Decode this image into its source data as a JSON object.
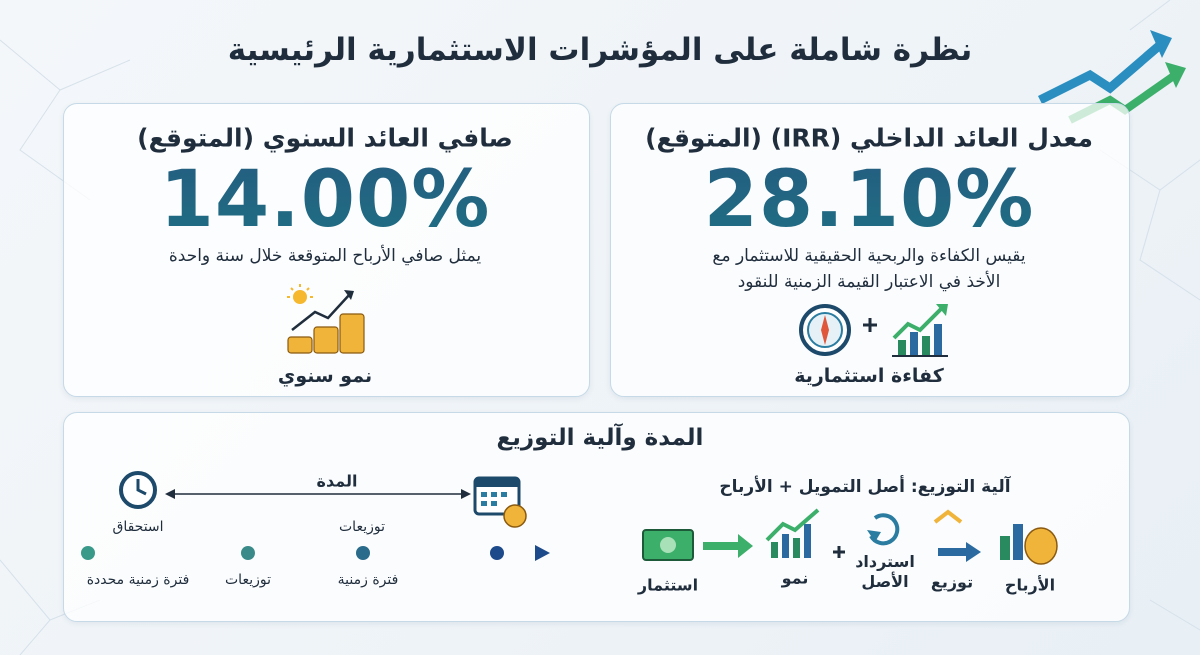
{
  "header": {
    "title": "نظرة شاملة على المؤشرات الاستثمارية الرئيسية"
  },
  "cards": [
    {
      "title": "معدل العائد الداخلي (IRR) (المتوقع)",
      "value": "28.10%",
      "description": [
        "يقيس الكفاءة والربحية الحقيقية للاستثمار مع",
        "الأخذ في الاعتبار القيمة الزمنية للنقود"
      ],
      "icon_label": "كفاءة استثمارية"
    },
    {
      "title": "صافي العائد السنوي (المتوقع)",
      "value": "14.00%",
      "description": [
        "يمثل صافي الأرباح المتوقعة خلال سنة واحدة"
      ],
      "icon_label": "نمو سنوي"
    }
  ],
  "duration_section": {
    "title": "المدة وآلية التوزيع",
    "timeline": {
      "duration_label": "المدة",
      "maturity_label": "استحقاق",
      "distributions_label": "توزيعات",
      "points": [
        "فترة زمنية محددة",
        "توزيعات",
        "فترة زمنية"
      ]
    },
    "mechanism": {
      "title": "آلية التوزيع: أصل التمويل + الأرباح",
      "steps": [
        "استثمار",
        "نمو",
        "استرداد الأصل",
        "توزيع",
        "الأرباح"
      ]
    }
  }
}
